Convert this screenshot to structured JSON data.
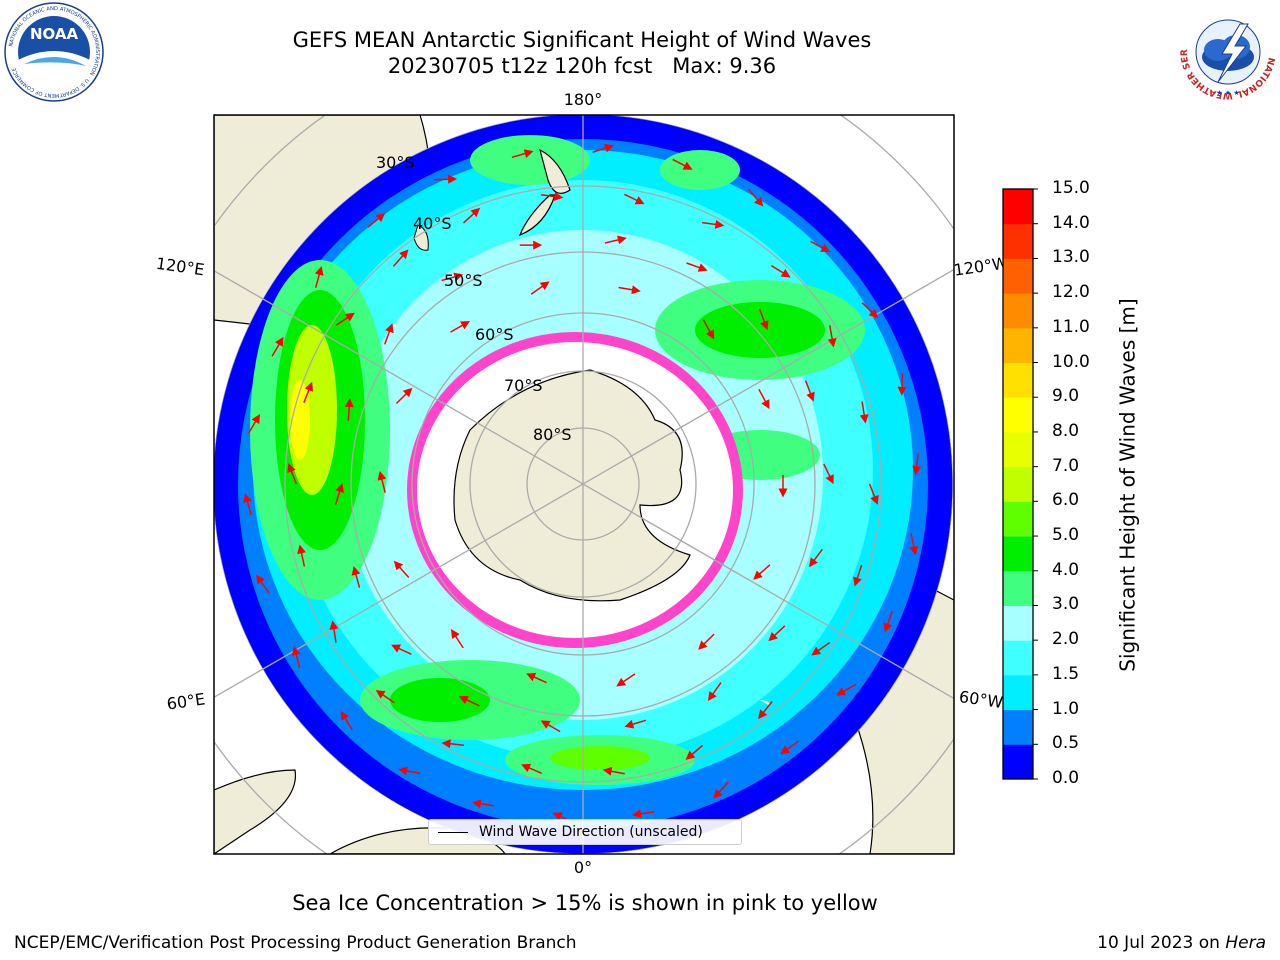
{
  "title": {
    "line1": "GEFS MEAN Antarctic Significant Height of Wind Waves",
    "line2": "20230705 t12z 120h fcst   Max: 9.36"
  },
  "logos": {
    "left": {
      "name": "noaa-logo",
      "text": "NOAA",
      "ring_text": "NATIONAL OCEANIC AND ATMOSPHERIC ADMINISTRATION · U.S. DEPARTMENT OF COMMERCE"
    },
    "right": {
      "name": "nws-logo",
      "ring_text": "NATIONAL WEATHER SERVICE"
    }
  },
  "map": {
    "projection": "south-polar-stereographic",
    "longitude_labels": {
      "top": "180°",
      "bottom": "0°",
      "upper_left": "120°E",
      "lower_left": "60°E",
      "upper_right": "120°W",
      "lower_right": "60°W"
    },
    "latitude_labels": [
      "30°S",
      "40°S",
      "50°S",
      "60°S",
      "70°S",
      "80°S"
    ],
    "legend_label": "Wind Wave Direction (unscaled)",
    "arrow_color": "#ff0000",
    "land_color": "#efedd8",
    "ice_color": "#ff44cc",
    "ocean_color": "#00ccff"
  },
  "colorbar": {
    "label": "Significant Height of Wind Waves [m]",
    "min": 0,
    "max": 15,
    "ticks": [
      "0.0",
      "0.5",
      "1.0",
      "1.5",
      "2.0",
      "3.0",
      "4.0",
      "5.0",
      "6.0",
      "7.0",
      "8.0",
      "9.0",
      "10.0",
      "11.0",
      "12.0",
      "13.0",
      "14.0",
      "15.0"
    ],
    "colors": [
      "#0000ff",
      "#0080ff",
      "#00eeff",
      "#40ffff",
      "#a8ffff",
      "#40ff80",
      "#00ee00",
      "#60ff00",
      "#c0ff00",
      "#e8ff00",
      "#ffff00",
      "#ffe000",
      "#ffb400",
      "#ff8c00",
      "#ff6000",
      "#ff3000",
      "#ff0000"
    ]
  },
  "caption": "Sea Ice Concentration > 15% is shown in pink to yellow",
  "footer": {
    "left": "NCEP/EMC/Verification Post Processing Product Generation Branch",
    "right_prefix": "10 Jul 2023 on ",
    "right_host": "Hera"
  }
}
